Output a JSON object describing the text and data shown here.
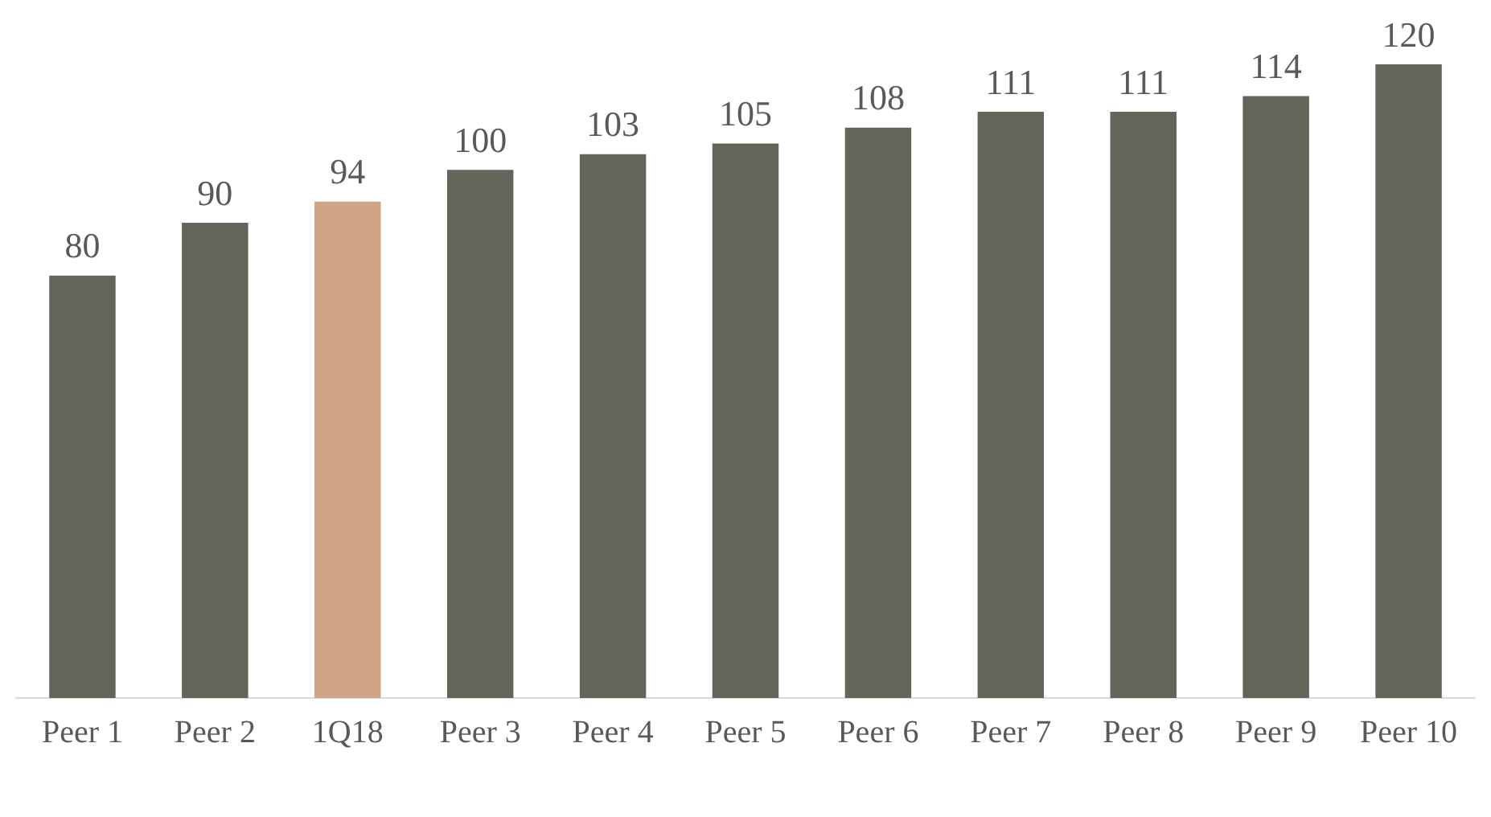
{
  "chart_data": {
    "type": "bar",
    "categories": [
      "Peer 1",
      "Peer 2",
      "1Q18",
      "Peer 3",
      "Peer 4",
      "Peer 5",
      "Peer 6",
      "Peer 7",
      "Peer 8",
      "Peer 9",
      "Peer 10"
    ],
    "values": [
      80,
      90,
      94,
      100,
      103,
      105,
      108,
      111,
      111,
      114,
      120
    ],
    "colors": [
      "#64655a",
      "#64655a",
      "#d0a585",
      "#64655a",
      "#64655a",
      "#64655a",
      "#64655a",
      "#64655a",
      "#64655a",
      "#64655a",
      "#64655a"
    ],
    "data_labels": true,
    "grid": false,
    "legend": false
  }
}
